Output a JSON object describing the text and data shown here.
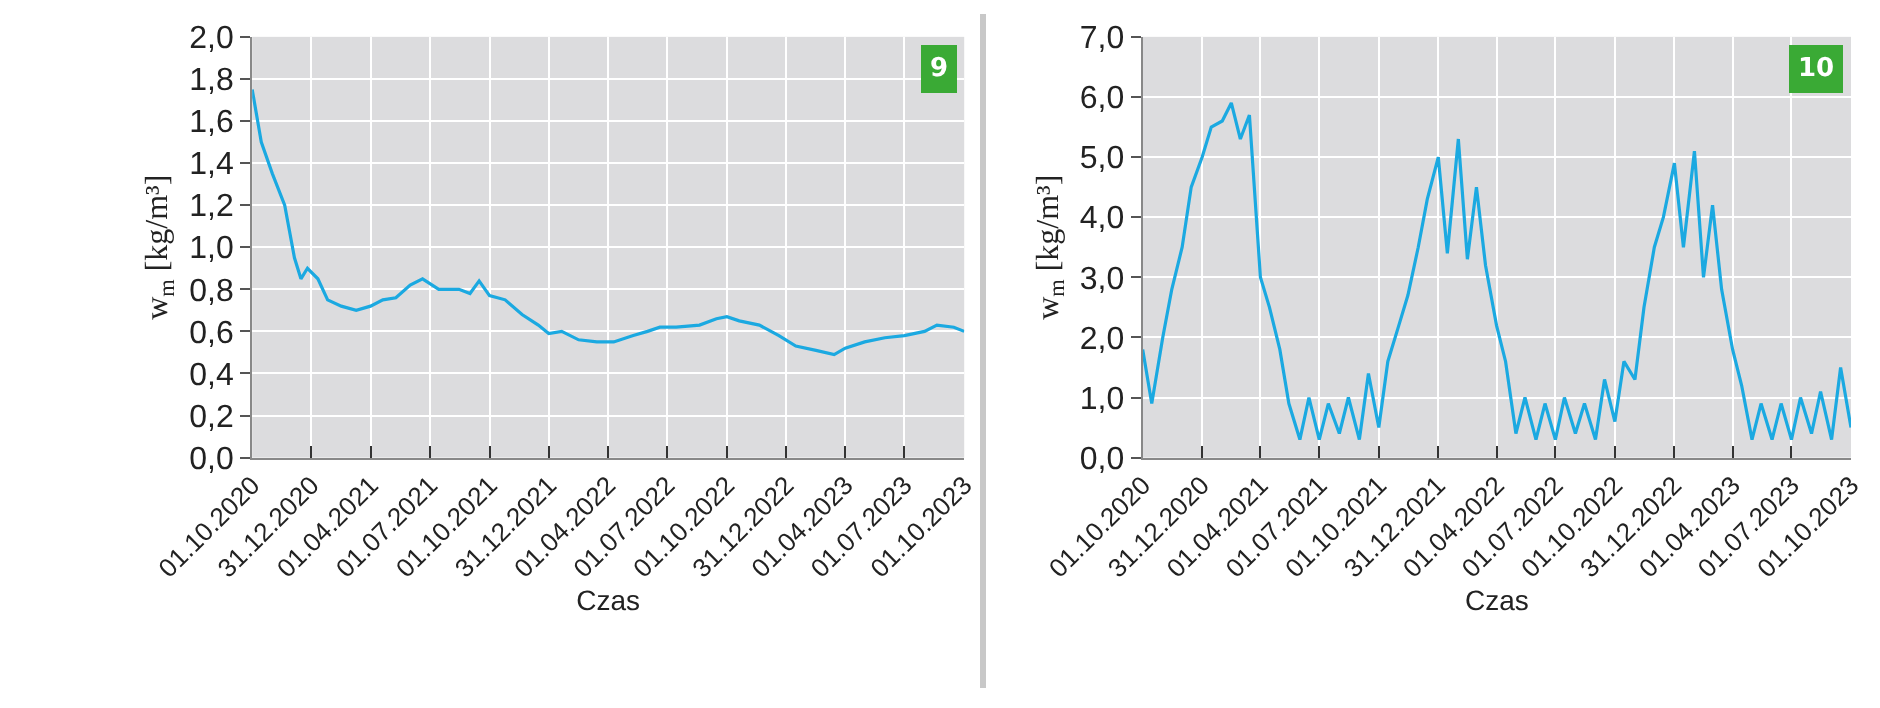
{
  "chart_data": [
    {
      "type": "line",
      "xlabel": "Czas",
      "ylabel": "w$_{m}$ [kg/m³]",
      "annotations": [
        "9"
      ],
      "grid": true,
      "marker": "none",
      "line_style": "solid",
      "xlim": [
        "2020-10-01",
        "2023-10-01"
      ],
      "xticks": [
        {
          "value": "2020-10-01",
          "label": "01.10.2020"
        },
        {
          "value": "2020-12-31",
          "label": "31.12.2020"
        },
        {
          "value": "2021-04-01",
          "label": "01.04.2021"
        },
        {
          "value": "2021-07-01",
          "label": "01.07.2021"
        },
        {
          "value": "2021-10-01",
          "label": "01.10.2021"
        },
        {
          "value": "2021-12-31",
          "label": "31.12.2021"
        },
        {
          "value": "2022-04-01",
          "label": "01.04.2022"
        },
        {
          "value": "2022-07-01",
          "label": "01.07.2022"
        },
        {
          "value": "2022-10-01",
          "label": "01.10.2022"
        },
        {
          "value": "2022-12-31",
          "label": "31.12.2022"
        },
        {
          "value": "2023-04-01",
          "label": "01.04.2023"
        },
        {
          "value": "2023-07-01",
          "label": "01.07.2023"
        },
        {
          "value": "2023-10-01",
          "label": "01.10.2023"
        }
      ],
      "ylim": [
        0,
        2
      ],
      "yticks": [
        {
          "value": 0,
          "label": "0,0"
        },
        {
          "value": 0.2,
          "label": "0,2"
        },
        {
          "value": 0.4,
          "label": "0,4"
        },
        {
          "value": 0.6,
          "label": "0,6"
        },
        {
          "value": 0.8,
          "label": "0,8"
        },
        {
          "value": 1.0,
          "label": "1,0"
        },
        {
          "value": 1.2,
          "label": "1,2"
        },
        {
          "value": 1.4,
          "label": "1,4"
        },
        {
          "value": 1.6,
          "label": "1,6"
        },
        {
          "value": 1.8,
          "label": "1,8"
        },
        {
          "value": 2.0,
          "label": "2,0"
        }
      ],
      "series": [
        {
          "color": "#1ba9e1",
          "x": [
            "2020-10-01",
            "2020-10-15",
            "2020-11-01",
            "2020-11-20",
            "2020-12-05",
            "2020-12-15",
            "2020-12-25",
            "2021-01-10",
            "2021-01-25",
            "2021-02-15",
            "2021-03-10",
            "2021-04-01",
            "2021-04-20",
            "2021-05-10",
            "2021-06-01",
            "2021-06-20",
            "2021-07-15",
            "2021-08-15",
            "2021-09-01",
            "2021-09-15",
            "2021-10-01",
            "2021-10-25",
            "2021-11-20",
            "2021-12-15",
            "2021-12-31",
            "2022-01-20",
            "2022-02-15",
            "2022-03-15",
            "2022-04-10",
            "2022-05-10",
            "2022-06-01",
            "2022-06-20",
            "2022-07-15",
            "2022-08-20",
            "2022-09-15",
            "2022-10-01",
            "2022-10-20",
            "2022-11-20",
            "2022-12-20",
            "2023-01-15",
            "2023-02-15",
            "2023-03-15",
            "2023-04-01",
            "2023-05-01",
            "2023-06-01",
            "2023-07-01",
            "2023-08-01",
            "2023-08-20",
            "2023-09-15",
            "2023-10-01"
          ],
          "values": [
            1.75,
            1.5,
            1.35,
            1.2,
            0.95,
            0.85,
            0.9,
            0.85,
            0.75,
            0.72,
            0.7,
            0.72,
            0.75,
            0.76,
            0.82,
            0.85,
            0.8,
            0.8,
            0.78,
            0.84,
            0.77,
            0.75,
            0.68,
            0.63,
            0.59,
            0.6,
            0.56,
            0.55,
            0.55,
            0.58,
            0.6,
            0.62,
            0.62,
            0.63,
            0.66,
            0.67,
            0.65,
            0.63,
            0.58,
            0.53,
            0.51,
            0.49,
            0.52,
            0.55,
            0.57,
            0.58,
            0.6,
            0.63,
            0.62,
            0.6
          ]
        }
      ]
    },
    {
      "type": "line",
      "xlabel": "Czas",
      "ylabel": "w$_{m}$ [kg/m³]",
      "annotations": [
        "10"
      ],
      "grid": true,
      "marker": "none",
      "line_style": "solid",
      "xlim": [
        "2020-10-01",
        "2023-10-01"
      ],
      "xticks": [
        {
          "value": "2020-10-01",
          "label": "01.10.2020"
        },
        {
          "value": "2020-12-31",
          "label": "31.12.2020"
        },
        {
          "value": "2021-04-01",
          "label": "01.04.2021"
        },
        {
          "value": "2021-07-01",
          "label": "01.07.2021"
        },
        {
          "value": "2021-10-01",
          "label": "01.10.2021"
        },
        {
          "value": "2021-12-31",
          "label": "31.12.2021"
        },
        {
          "value": "2022-04-01",
          "label": "01.04.2022"
        },
        {
          "value": "2022-07-01",
          "label": "01.07.2022"
        },
        {
          "value": "2022-10-01",
          "label": "01.10.2022"
        },
        {
          "value": "2022-12-31",
          "label": "31.12.2022"
        },
        {
          "value": "2023-04-01",
          "label": "01.04.2023"
        },
        {
          "value": "2023-07-01",
          "label": "01.07.2023"
        },
        {
          "value": "2023-10-01",
          "label": "01.10.2023"
        }
      ],
      "ylim": [
        0,
        7
      ],
      "yticks": [
        {
          "value": 0,
          "label": "0,0"
        },
        {
          "value": 1,
          "label": "1,0"
        },
        {
          "value": 2,
          "label": "2,0"
        },
        {
          "value": 3,
          "label": "3,0"
        },
        {
          "value": 4,
          "label": "4,0"
        },
        {
          "value": 5,
          "label": "5,0"
        },
        {
          "value": 6,
          "label": "6,0"
        },
        {
          "value": 7,
          "label": "7,0"
        }
      ],
      "series": [
        {
          "color": "#1ba9e1",
          "x": [
            "2020-10-01",
            "2020-10-15",
            "2020-11-01",
            "2020-11-15",
            "2020-12-01",
            "2020-12-15",
            "2021-01-01",
            "2021-01-15",
            "2021-02-01",
            "2021-02-15",
            "2021-03-01",
            "2021-03-15",
            "2021-04-01",
            "2021-04-15",
            "2021-05-01",
            "2021-05-15",
            "2021-06-01",
            "2021-06-15",
            "2021-07-01",
            "2021-07-15",
            "2021-08-01",
            "2021-08-15",
            "2021-09-01",
            "2021-09-15",
            "2021-10-01",
            "2021-10-15",
            "2021-11-01",
            "2021-11-15",
            "2021-12-01",
            "2021-12-15",
            "2022-01-01",
            "2022-01-15",
            "2022-02-01",
            "2022-02-15",
            "2022-03-01",
            "2022-03-15",
            "2022-04-01",
            "2022-04-15",
            "2022-05-01",
            "2022-05-15",
            "2022-06-01",
            "2022-06-15",
            "2022-07-01",
            "2022-07-15",
            "2022-08-01",
            "2022-08-15",
            "2022-09-01",
            "2022-09-15",
            "2022-10-01",
            "2022-10-15",
            "2022-11-01",
            "2022-11-15",
            "2022-12-01",
            "2022-12-15",
            "2023-01-01",
            "2023-01-15",
            "2023-02-01",
            "2023-02-15",
            "2023-03-01",
            "2023-03-15",
            "2023-04-01",
            "2023-04-15",
            "2023-05-01",
            "2023-05-15",
            "2023-06-01",
            "2023-06-15",
            "2023-07-01",
            "2023-07-15",
            "2023-08-01",
            "2023-08-15",
            "2023-09-01",
            "2023-09-15",
            "2023-10-01"
          ],
          "values": [
            1.8,
            0.9,
            2.0,
            2.8,
            3.5,
            4.5,
            5.0,
            5.5,
            5.6,
            5.9,
            5.3,
            5.7,
            3.0,
            2.5,
            1.8,
            0.9,
            0.3,
            1.0,
            0.3,
            0.9,
            0.4,
            1.0,
            0.3,
            1.4,
            0.5,
            1.6,
            2.2,
            2.7,
            3.5,
            4.3,
            5.0,
            3.4,
            5.3,
            3.3,
            4.5,
            3.2,
            2.2,
            1.6,
            0.4,
            1.0,
            0.3,
            0.9,
            0.3,
            1.0,
            0.4,
            0.9,
            0.3,
            1.3,
            0.6,
            1.6,
            1.3,
            2.5,
            3.5,
            4.0,
            4.9,
            3.5,
            5.1,
            3.0,
            4.2,
            2.8,
            1.8,
            1.2,
            0.3,
            0.9,
            0.3,
            0.9,
            0.3,
            1.0,
            0.4,
            1.1,
            0.3,
            1.5,
            0.5
          ]
        }
      ]
    }
  ]
}
